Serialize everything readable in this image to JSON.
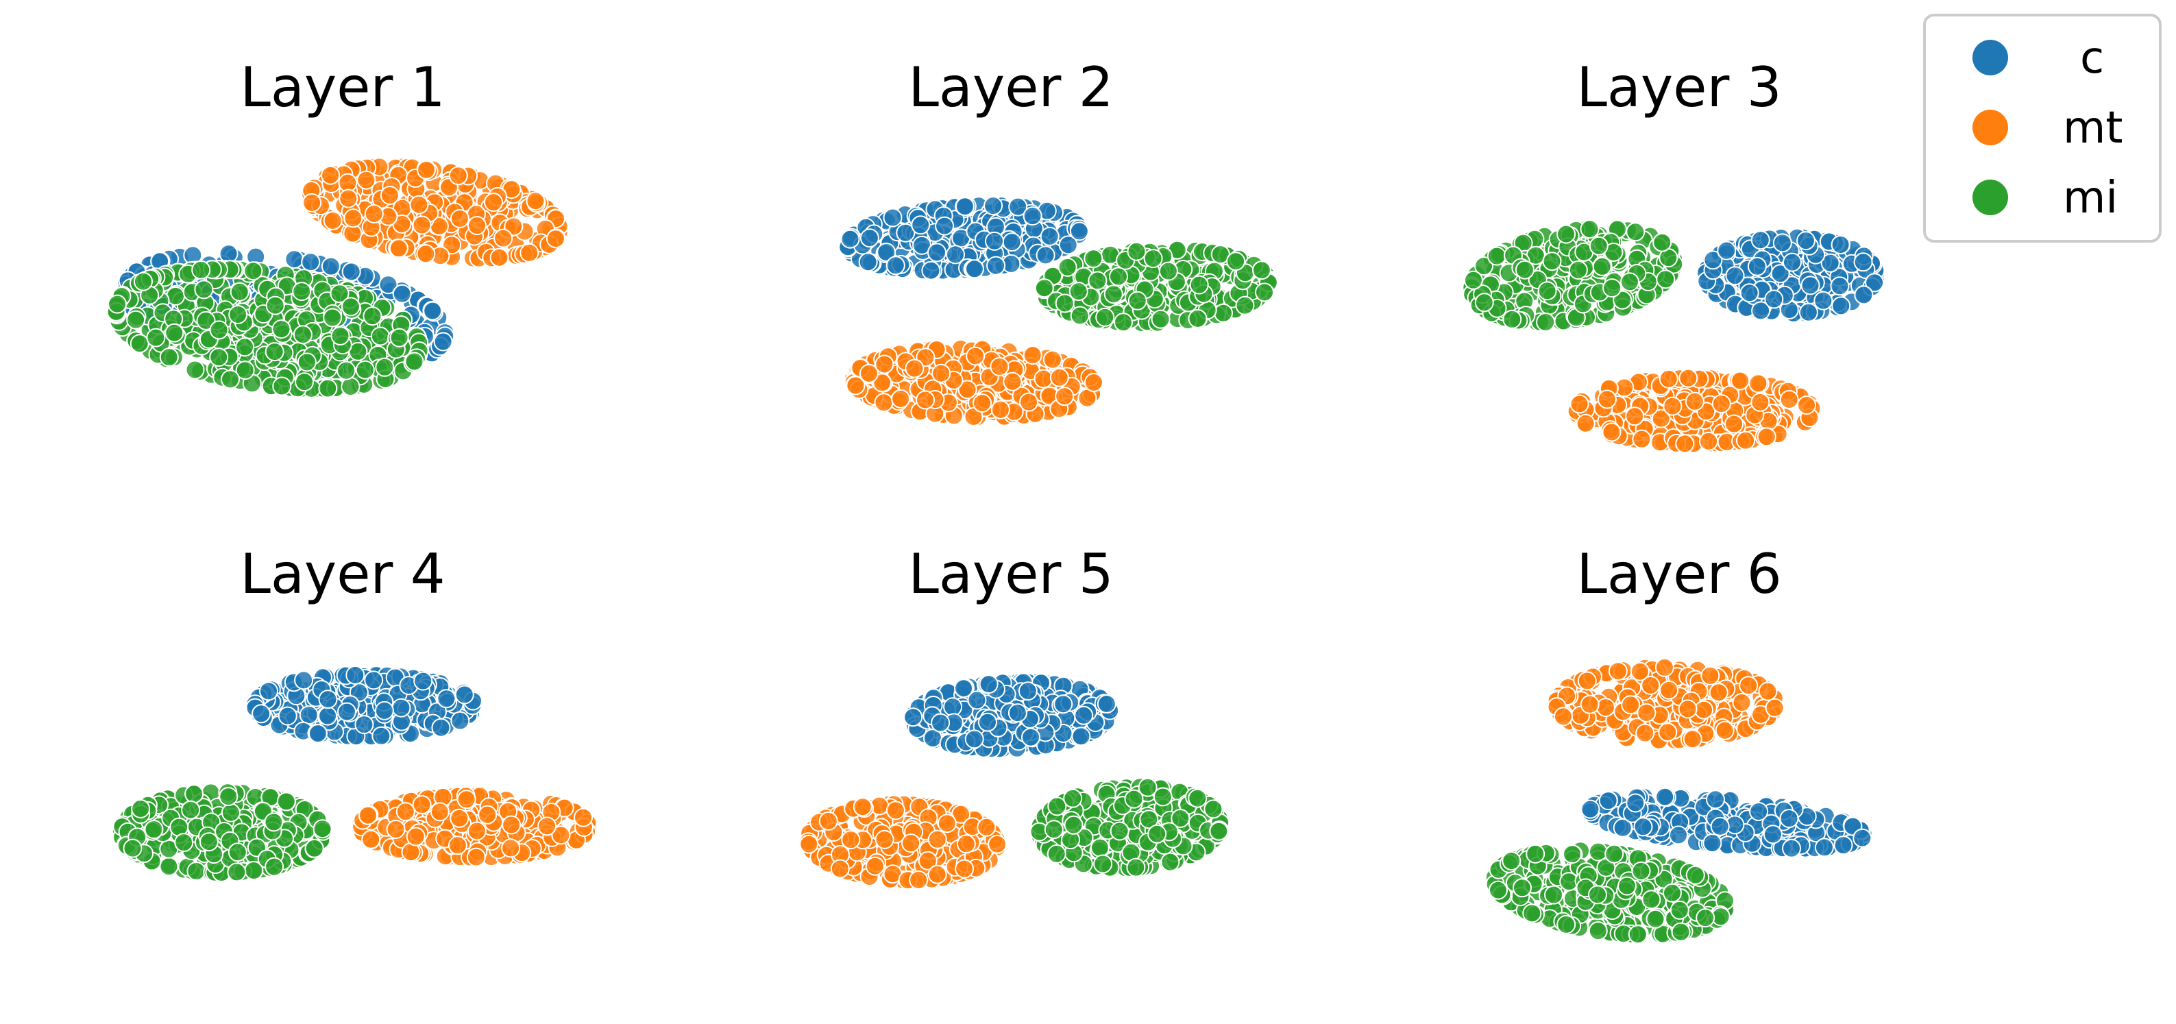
{
  "chart_data": {
    "type": "scatter",
    "colors": {
      "c": "#1f77b4",
      "mt": "#ff7f0e",
      "mi": "#2ca02c"
    },
    "legend": {
      "placement": "top-right",
      "entries": [
        {
          "label": "c",
          "color": "#1f77b4"
        },
        {
          "label": "mt",
          "color": "#ff7f0e"
        },
        {
          "label": "mi",
          "color": "#2ca02c"
        }
      ]
    },
    "grid": false,
    "axes_visible": false,
    "xlim": [
      0,
      1
    ],
    "ylim": [
      0,
      1
    ],
    "panels": [
      {
        "title": "Layer 1",
        "clusters": [
          {
            "series": "c",
            "cx": 0.4,
            "cy": 0.5,
            "sx": 0.36,
            "sy": 0.19,
            "angle": -18,
            "n": 320
          },
          {
            "series": "mt",
            "cx": 0.66,
            "cy": 0.79,
            "sx": 0.28,
            "sy": 0.15,
            "angle": -18,
            "n": 320
          },
          {
            "series": "mi",
            "cx": 0.37,
            "cy": 0.45,
            "sx": 0.34,
            "sy": 0.2,
            "angle": -18,
            "n": 460
          }
        ]
      },
      {
        "title": "Layer 2",
        "clusters": [
          {
            "series": "c",
            "cx": 0.35,
            "cy": 0.79,
            "sx": 0.28,
            "sy": 0.13,
            "angle": 8,
            "n": 300
          },
          {
            "series": "mi",
            "cx": 0.72,
            "cy": 0.63,
            "sx": 0.27,
            "sy": 0.15,
            "angle": 5,
            "n": 300
          },
          {
            "series": "mt",
            "cx": 0.37,
            "cy": 0.31,
            "sx": 0.29,
            "sy": 0.14,
            "angle": -4,
            "n": 300
          }
        ]
      },
      {
        "title": "Layer 3",
        "clusters": [
          {
            "series": "mi",
            "cx": 0.27,
            "cy": 0.67,
            "sx": 0.26,
            "sy": 0.17,
            "angle": 22,
            "n": 300
          },
          {
            "series": "c",
            "cx": 0.7,
            "cy": 0.67,
            "sx": 0.21,
            "sy": 0.15,
            "angle": 0,
            "n": 300
          },
          {
            "series": "mt",
            "cx": 0.51,
            "cy": 0.24,
            "sx": 0.29,
            "sy": 0.13,
            "angle": 0,
            "n": 300
          }
        ]
      },
      {
        "title": "Layer 4",
        "clusters": [
          {
            "series": "c",
            "cx": 0.54,
            "cy": 0.78,
            "sx": 0.25,
            "sy": 0.13,
            "angle": 0,
            "n": 300
          },
          {
            "series": "mi",
            "cx": 0.28,
            "cy": 0.35,
            "sx": 0.23,
            "sy": 0.17,
            "angle": 0,
            "n": 320
          },
          {
            "series": "mt",
            "cx": 0.74,
            "cy": 0.37,
            "sx": 0.26,
            "sy": 0.13,
            "angle": 0,
            "n": 300
          }
        ]
      },
      {
        "title": "Layer 5",
        "clusters": [
          {
            "series": "c",
            "cx": 0.48,
            "cy": 0.77,
            "sx": 0.25,
            "sy": 0.14,
            "angle": 5,
            "n": 300
          },
          {
            "series": "mt",
            "cx": 0.26,
            "cy": 0.34,
            "sx": 0.24,
            "sy": 0.16,
            "angle": -5,
            "n": 300
          },
          {
            "series": "mi",
            "cx": 0.72,
            "cy": 0.39,
            "sx": 0.23,
            "sy": 0.17,
            "angle": 8,
            "n": 300
          }
        ]
      },
      {
        "title": "Layer 6",
        "clusters": [
          {
            "series": "mt",
            "cx": 0.42,
            "cy": 0.81,
            "sx": 0.27,
            "sy": 0.13,
            "angle": 0,
            "n": 300
          },
          {
            "series": "c",
            "cx": 0.54,
            "cy": 0.47,
            "sx": 0.34,
            "sy": 0.08,
            "angle": -8,
            "n": 260
          },
          {
            "series": "mi",
            "cx": 0.31,
            "cy": 0.27,
            "sx": 0.29,
            "sy": 0.14,
            "angle": -12,
            "n": 320
          }
        ]
      }
    ]
  }
}
